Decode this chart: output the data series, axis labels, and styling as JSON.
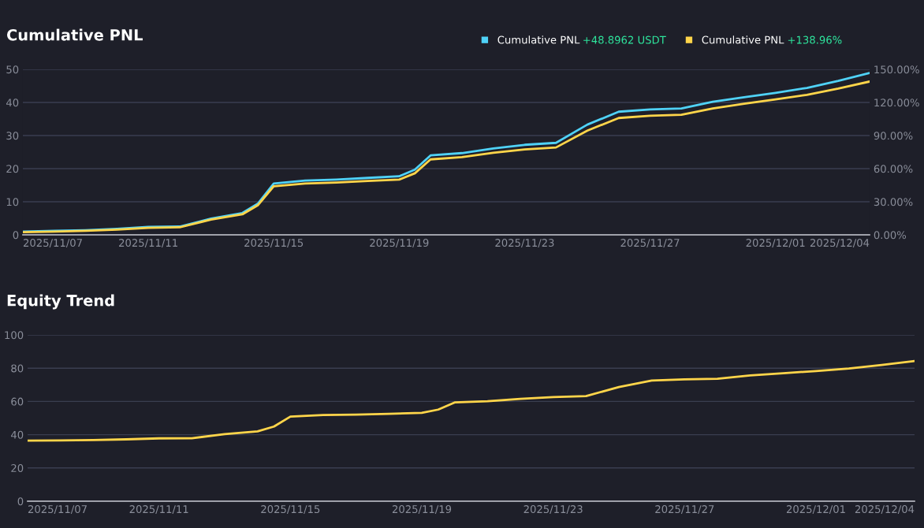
{
  "chart_data": [
    {
      "type": "line",
      "title": "Cumulative PNL",
      "x": [
        "2025-11-07",
        "2025-11-08",
        "2025-11-09",
        "2025-11-10",
        "2025-11-11",
        "2025-11-12",
        "2025-11-13",
        "2025-11-14",
        "2025-11-14T12:00",
        "2025-11-15",
        "2025-11-16",
        "2025-11-17",
        "2025-11-18",
        "2025-11-19",
        "2025-11-19T12:00",
        "2025-11-20",
        "2025-11-21",
        "2025-11-22",
        "2025-11-23",
        "2025-11-24",
        "2025-11-25",
        "2025-11-26",
        "2025-11-27",
        "2025-11-28",
        "2025-11-29",
        "2025-11-30",
        "2025-12-01",
        "2025-12-02",
        "2025-12-03",
        "2025-12-04"
      ],
      "series": [
        {
          "name": "Cumulative PNL",
          "color": "#4fd2f7",
          "axis": "y",
          "values": [
            1.0,
            1.2,
            1.4,
            1.8,
            2.4,
            2.5,
            4.9,
            6.6,
            9.5,
            15.5,
            16.4,
            16.7,
            17.2,
            17.7,
            19.7,
            24.0,
            24.7,
            26.1,
            27.2,
            27.8,
            33.3,
            37.2,
            37.9,
            38.2,
            40.2,
            41.6,
            42.9,
            44.4,
            46.5,
            48.8962
          ]
        },
        {
          "name": "Cumulative PNL",
          "color": "#ffd54a",
          "axis": "y2",
          "values": [
            2.4,
            3.0,
            3.6,
            4.8,
            6.3,
            6.8,
            13.8,
            18.6,
            27.0,
            44.1,
            46.5,
            47.4,
            48.9,
            50.1,
            55.8,
            68.4,
            70.5,
            74.4,
            77.4,
            79.2,
            94.5,
            105.9,
            108.0,
            108.9,
            114.6,
            118.8,
            122.7,
            126.9,
            132.6,
            138.96
          ]
        }
      ],
      "annotations": [
        "+48.8962 USDT",
        "+138.96%"
      ],
      "xlim": [
        "2025-11-07",
        "2025-12-04"
      ],
      "xticks": [
        {
          "value": "2025-11-07",
          "label": "2025/11/07"
        },
        {
          "value": "2025-11-11",
          "label": "2025/11/11"
        },
        {
          "value": "2025-11-15",
          "label": "2025/11/15"
        },
        {
          "value": "2025-11-19",
          "label": "2025/11/19"
        },
        {
          "value": "2025-11-23",
          "label": "2025/11/23"
        },
        {
          "value": "2025-11-27",
          "label": "2025/11/27"
        },
        {
          "value": "2025-12-01",
          "label": "2025/12/01"
        },
        {
          "value": "2025-12-04",
          "label": "2025/12/04"
        }
      ],
      "ylim": [
        0,
        50
      ],
      "yticks": [
        0,
        10,
        20,
        30,
        40,
        50
      ],
      "y2lim": [
        0,
        150
      ],
      "y2ticks": [
        {
          "value": 0,
          "label": "0.00%"
        },
        {
          "value": 30,
          "label": "30.00%"
        },
        {
          "value": 60,
          "label": "60.00%"
        },
        {
          "value": 90,
          "label": "90.00%"
        },
        {
          "value": 120,
          "label": "120.00%"
        },
        {
          "value": 150,
          "label": "150.00%"
        }
      ],
      "grid": "y",
      "legend": "top right",
      "marker": "none",
      "line_style": "solid"
    },
    {
      "type": "line",
      "title": "Equity Trend",
      "x": [
        "2025-11-07",
        "2025-11-08",
        "2025-11-09",
        "2025-11-10",
        "2025-11-11",
        "2025-11-12",
        "2025-11-13",
        "2025-11-14",
        "2025-11-14T12:00",
        "2025-11-15",
        "2025-11-16",
        "2025-11-17",
        "2025-11-18",
        "2025-11-19",
        "2025-11-19T12:00",
        "2025-11-20",
        "2025-11-21",
        "2025-11-22",
        "2025-11-23",
        "2025-11-24",
        "2025-11-25",
        "2025-11-26",
        "2025-11-27",
        "2025-11-28",
        "2025-11-29",
        "2025-11-30",
        "2025-12-01",
        "2025-12-02",
        "2025-12-03",
        "2025-12-04"
      ],
      "series": [
        {
          "color": "#ffd54a",
          "values": [
            36.4,
            36.6,
            36.8,
            37.2,
            37.8,
            37.9,
            40.3,
            42.0,
            44.9,
            50.9,
            51.8,
            52.1,
            52.6,
            53.1,
            55.1,
            59.4,
            60.1,
            61.5,
            62.6,
            63.2,
            68.7,
            72.6,
            73.3,
            73.6,
            75.6,
            77.0,
            78.3,
            79.8,
            81.9,
            84.3
          ]
        }
      ],
      "xlim": [
        "2025-11-07",
        "2025-12-04"
      ],
      "xticks": [
        {
          "value": "2025-11-07",
          "label": "2025/11/07"
        },
        {
          "value": "2025-11-11",
          "label": "2025/11/11"
        },
        {
          "value": "2025-11-15",
          "label": "2025/11/15"
        },
        {
          "value": "2025-11-19",
          "label": "2025/11/19"
        },
        {
          "value": "2025-11-23",
          "label": "2025/11/23"
        },
        {
          "value": "2025-11-27",
          "label": "2025/11/27"
        },
        {
          "value": "2025-12-01",
          "label": "2025/12/01"
        },
        {
          "value": "2025-12-04",
          "label": "2025/12/04"
        }
      ],
      "ylim": [
        0,
        100
      ],
      "yticks": [
        0,
        20,
        40,
        60,
        80,
        100
      ],
      "grid": "y",
      "marker": "none",
      "line_style": "solid"
    }
  ]
}
